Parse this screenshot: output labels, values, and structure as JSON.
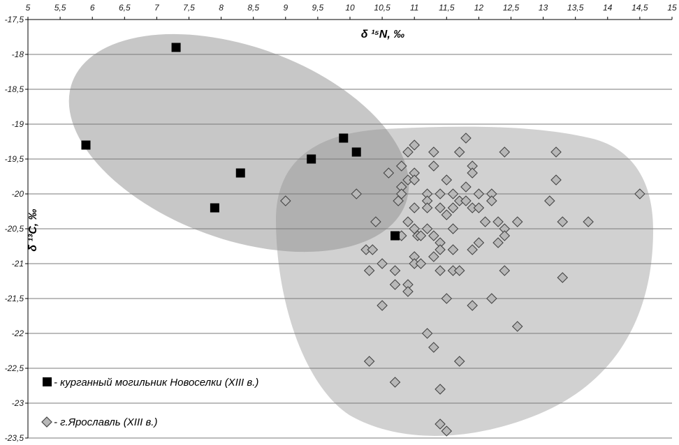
{
  "chart_data": {
    "type": "scatter",
    "title": "",
    "xlabel": "δ ¹⁵N, ‰",
    "ylabel": "δ ¹³C, ‰",
    "xlim": [
      5,
      15
    ],
    "ylim": [
      -23.5,
      -17.5
    ],
    "x_axis_position": "top",
    "grid": "horizontal",
    "x_ticks": [
      "5",
      "5,5",
      "6",
      "6,5",
      "7",
      "7,5",
      "8",
      "8,5",
      "9",
      "9,5",
      "10",
      "10,5",
      "11",
      "11,5",
      "12",
      "12,5",
      "13",
      "13,5",
      "14",
      "14,5",
      "15"
    ],
    "y_ticks": [
      "-17,5",
      "-18",
      "-18,5",
      "-19",
      "-19,5",
      "-20",
      "-20,5",
      "-21",
      "-21,5",
      "-22",
      "-22,5",
      "-23",
      "-23,5"
    ],
    "legend_position": "bottom-left",
    "series": [
      {
        "name": "- курганный могильник Новоселки (XIII в.)",
        "marker": "square",
        "color": "#000000",
        "points": [
          [
            7.3,
            -17.9
          ],
          [
            5.9,
            -19.3
          ],
          [
            8.3,
            -19.7
          ],
          [
            7.9,
            -20.2
          ],
          [
            9.4,
            -19.5
          ],
          [
            9.9,
            -19.2
          ],
          [
            10.1,
            -19.4
          ],
          [
            10.7,
            -20.6
          ]
        ]
      },
      {
        "name": "- г.Ярославль (XIII в.)",
        "marker": "diamond",
        "color": "#b8b8b8",
        "points": [
          [
            9.0,
            -20.1
          ],
          [
            10.1,
            -20.0
          ],
          [
            10.4,
            -20.4
          ],
          [
            10.25,
            -20.8
          ],
          [
            10.3,
            -21.1
          ],
          [
            10.5,
            -21.0
          ],
          [
            10.35,
            -20.8
          ],
          [
            10.7,
            -21.1
          ],
          [
            10.7,
            -21.3
          ],
          [
            10.5,
            -21.6
          ],
          [
            10.3,
            -22.4
          ],
          [
            10.7,
            -22.7
          ],
          [
            10.6,
            -19.7
          ],
          [
            10.8,
            -19.6
          ],
          [
            10.9,
            -19.4
          ],
          [
            11.0,
            -19.3
          ],
          [
            10.9,
            -19.8
          ],
          [
            10.8,
            -19.9
          ],
          [
            10.75,
            -20.1
          ],
          [
            10.8,
            -20.0
          ],
          [
            11.0,
            -19.7
          ],
          [
            11.0,
            -19.8
          ],
          [
            11.0,
            -20.2
          ],
          [
            10.9,
            -20.4
          ],
          [
            11.0,
            -20.5
          ],
          [
            10.8,
            -20.6
          ],
          [
            11.05,
            -20.6
          ],
          [
            11.1,
            -20.6
          ],
          [
            11.0,
            -20.9
          ],
          [
            11.0,
            -21.0
          ],
          [
            11.1,
            -21.0
          ],
          [
            10.9,
            -21.3
          ],
          [
            10.9,
            -21.4
          ],
          [
            11.2,
            -20.0
          ],
          [
            11.2,
            -20.1
          ],
          [
            11.2,
            -20.2
          ],
          [
            11.3,
            -19.4
          ],
          [
            11.3,
            -19.6
          ],
          [
            11.2,
            -20.5
          ],
          [
            11.3,
            -20.6
          ],
          [
            11.3,
            -20.9
          ],
          [
            11.4,
            -20.7
          ],
          [
            11.4,
            -20.8
          ],
          [
            11.4,
            -20.0
          ],
          [
            11.4,
            -20.2
          ],
          [
            11.5,
            -20.3
          ],
          [
            11.5,
            -19.8
          ],
          [
            11.6,
            -20.0
          ],
          [
            11.6,
            -20.2
          ],
          [
            11.7,
            -20.1
          ],
          [
            11.7,
            -19.4
          ],
          [
            11.8,
            -19.2
          ],
          [
            11.8,
            -19.9
          ],
          [
            11.8,
            -20.1
          ],
          [
            11.9,
            -19.6
          ],
          [
            11.9,
            -19.7
          ],
          [
            11.9,
            -20.2
          ],
          [
            12.0,
            -20.0
          ],
          [
            12.0,
            -20.2
          ],
          [
            11.6,
            -20.5
          ],
          [
            11.6,
            -20.8
          ],
          [
            11.9,
            -20.8
          ],
          [
            12.0,
            -20.7
          ],
          [
            11.4,
            -21.1
          ],
          [
            11.6,
            -21.1
          ],
          [
            11.7,
            -21.1
          ],
          [
            11.5,
            -21.5
          ],
          [
            11.9,
            -21.6
          ],
          [
            11.2,
            -22.0
          ],
          [
            11.3,
            -22.2
          ],
          [
            11.7,
            -22.4
          ],
          [
            11.4,
            -22.8
          ],
          [
            11.4,
            -23.3
          ],
          [
            11.5,
            -23.4
          ],
          [
            12.1,
            -20.4
          ],
          [
            12.2,
            -20.0
          ],
          [
            12.2,
            -20.1
          ],
          [
            12.3,
            -20.4
          ],
          [
            12.3,
            -20.7
          ],
          [
            12.4,
            -20.5
          ],
          [
            12.4,
            -20.6
          ],
          [
            12.4,
            -19.4
          ],
          [
            12.2,
            -21.5
          ],
          [
            12.4,
            -21.1
          ],
          [
            12.6,
            -20.4
          ],
          [
            12.6,
            -21.9
          ],
          [
            13.1,
            -20.1
          ],
          [
            13.2,
            -19.4
          ],
          [
            13.2,
            -19.8
          ],
          [
            13.3,
            -20.4
          ],
          [
            13.3,
            -21.2
          ],
          [
            13.7,
            -20.4
          ],
          [
            14.5,
            -20.0
          ]
        ]
      }
    ]
  }
}
